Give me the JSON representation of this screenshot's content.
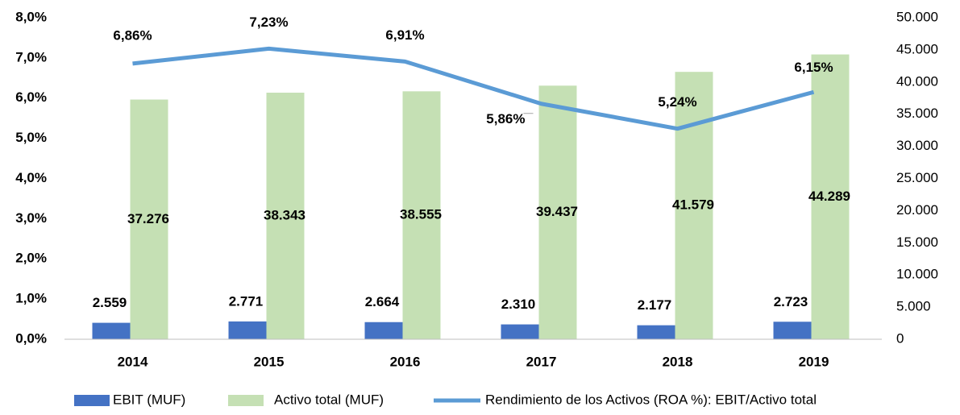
{
  "chart_data": {
    "type": "bar",
    "categories": [
      "2014",
      "2015",
      "2016",
      "2017",
      "2018",
      "2019"
    ],
    "series": [
      {
        "name": "EBIT (MUF)",
        "type": "bar",
        "axis": "y2",
        "color": "#4472c4",
        "values": [
          2559,
          2771,
          2664,
          2310,
          2177,
          2723
        ],
        "value_labels": [
          "2.559",
          "2.771",
          "2.664",
          "2.310",
          "2.177",
          "2.723"
        ]
      },
      {
        "name": "Activo total (MUF)",
        "type": "bar",
        "axis": "y2",
        "color": "#c5e0b4",
        "values": [
          37276,
          38343,
          38555,
          39437,
          41579,
          44289
        ],
        "value_labels": [
          "37.276",
          "38.343",
          "38.555",
          "39.437",
          "41.579",
          "44.289"
        ]
      },
      {
        "name": "Rendimiento de los Activos (ROA %): EBIT/Activo total",
        "type": "line",
        "axis": "y",
        "color": "#5b9bd5",
        "values": [
          6.86,
          7.23,
          6.91,
          5.86,
          5.24,
          6.15
        ],
        "value_labels": [
          "6,86%",
          "7,23%",
          "6,91%",
          "5,86%",
          "5,24%",
          "6,15%"
        ]
      }
    ],
    "ylim": [
      0,
      8
    ],
    "yticks": [
      {
        "value": 0,
        "label": "0,0%"
      },
      {
        "value": 1,
        "label": "1,0%"
      },
      {
        "value": 2,
        "label": "2,0%"
      },
      {
        "value": 3,
        "label": "3,0%"
      },
      {
        "value": 4,
        "label": "4,0%"
      },
      {
        "value": 5,
        "label": "5,0%"
      },
      {
        "value": 6,
        "label": "6,0%"
      },
      {
        "value": 7,
        "label": "7,0%"
      },
      {
        "value": 8,
        "label": "8,0%"
      }
    ],
    "y2lim": [
      0,
      50000
    ],
    "y2ticks": [
      0,
      {
        "value": 5000,
        "label": "5.000"
      },
      {
        "value": 10000,
        "label": "10.000"
      },
      {
        "value": 15000,
        "label": "15.000"
      },
      {
        "value": 20000,
        "label": "20.000"
      },
      {
        "value": 25000,
        "label": "25.000"
      },
      {
        "value": 30000,
        "label": "30.000"
      },
      {
        "value": 35000,
        "label": "35.000"
      },
      {
        "value": 40000,
        "label": "40.000"
      },
      {
        "value": 45000,
        "label": "45.000"
      },
      {
        "value": 50000,
        "label": "50.000"
      }
    ],
    "grid": false,
    "legend": "bottom"
  }
}
